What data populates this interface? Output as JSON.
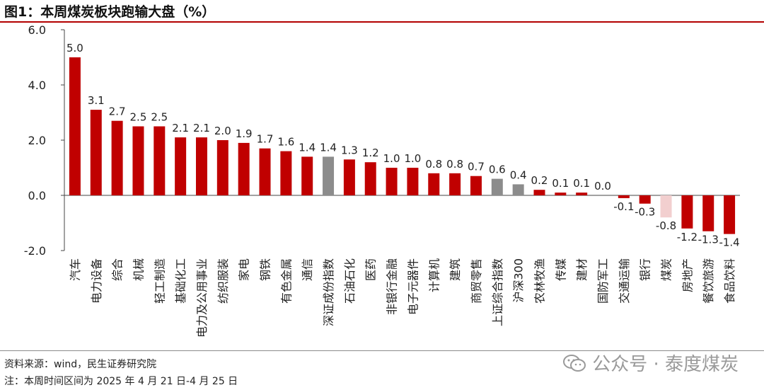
{
  "title": "图1：本周煤炭板块跑输大盘（%）",
  "source": "资料来源：wind，民生证券研究院",
  "note": "注：本周时间区间为 2025 年 4 月 21 日-4 月 25 日",
  "watermark": "公众号 · 泰度煤炭",
  "colors": {
    "sector": "#c00000",
    "index": "#8c8c8c",
    "coal": "#f2cfcf"
  },
  "chart_data": {
    "type": "bar",
    "title": "图1：本周煤炭板块跑输大盘（%）",
    "xlabel": "",
    "ylabel": "",
    "ylim": [
      -2.0,
      6.0
    ],
    "yticks": [
      "-2.0",
      "0.0",
      "2.0",
      "4.0",
      "6.0"
    ],
    "grid": false,
    "categories": [
      "汽车",
      "电力设备",
      "综合",
      "机械",
      "轻工制造",
      "基础化工",
      "电力及公用事业",
      "纺织服装",
      "家电",
      "钢铁",
      "有色金属",
      "通信",
      "深证成份指数",
      "石油石化",
      "医药",
      "非银行金融",
      "电子元器件",
      "计算机",
      "建筑",
      "商贸零售",
      "上证综合指数",
      "沪深300",
      "农林牧渔",
      "传媒",
      "建材",
      "国防军工",
      "交通运输",
      "银行",
      "煤炭",
      "房地产",
      "餐饮旅游",
      "食品饮料"
    ],
    "values": [
      5.0,
      3.1,
      2.7,
      2.5,
      2.5,
      2.1,
      2.1,
      2.0,
      1.9,
      1.7,
      1.6,
      1.4,
      1.4,
      1.3,
      1.2,
      1.0,
      1.0,
      0.8,
      0.8,
      0.7,
      0.6,
      0.4,
      0.2,
      0.1,
      0.1,
      0.0,
      -0.1,
      -0.3,
      -0.8,
      -1.2,
      -1.3,
      -1.4
    ],
    "value_labels": [
      "5.0",
      "3.1",
      "2.7",
      "2.5",
      "2.5",
      "2.1",
      "2.1",
      "2.0",
      "1.9",
      "1.7",
      "1.6",
      "1.4",
      "1.4",
      "1.3",
      "1.2",
      "1.0",
      "1.0",
      "0.8",
      "0.8",
      "0.7",
      "0.6",
      "0.4",
      "0.2",
      "0.1",
      "0.1",
      "0.0",
      "-0.1",
      "-0.3",
      "-0.8",
      "-1.2",
      "-1.3",
      "-1.4"
    ],
    "kinds": [
      "sector",
      "sector",
      "sector",
      "sector",
      "sector",
      "sector",
      "sector",
      "sector",
      "sector",
      "sector",
      "sector",
      "sector",
      "index",
      "sector",
      "sector",
      "sector",
      "sector",
      "sector",
      "sector",
      "sector",
      "index",
      "index",
      "sector",
      "sector",
      "sector",
      "sector",
      "sector",
      "sector",
      "coal",
      "sector",
      "sector",
      "sector"
    ]
  }
}
